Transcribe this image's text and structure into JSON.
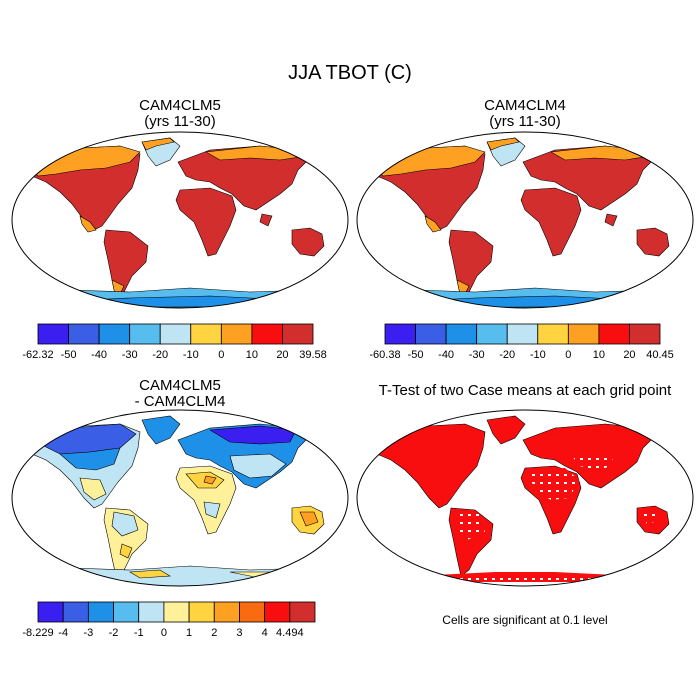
{
  "title": "JJA TBOT (C)",
  "panels": {
    "p1": {
      "line1": "CAM4CLM5",
      "line2": "(yrs 11-30)"
    },
    "p2": {
      "line1": "CAM4CLM4",
      "line2": "(yrs 11-30)"
    },
    "p3": {
      "line1": "CAM4CLM5",
      "line2": "- CAM4CLM4"
    },
    "p4": {
      "title": "T-Test of two Case means at each grid point",
      "note": "Cells are significant at 0.1 level"
    }
  },
  "colorbars": {
    "cb1": {
      "colors": [
        "#3a1ff0",
        "#3b5ee6",
        "#1e90e8",
        "#56bdee",
        "#bfe4f4",
        "#ffd440",
        "#fea123",
        "#f90e10",
        "#d22e2e"
      ],
      "labels": [
        "-62.32",
        "-50",
        "-40",
        "-30",
        "-20",
        "-10",
        "0",
        "10",
        "20",
        "39.58"
      ]
    },
    "cb2": {
      "colors": [
        "#3a1ff0",
        "#3b5ee6",
        "#1e90e8",
        "#56bdee",
        "#bfe4f4",
        "#ffd440",
        "#fea123",
        "#f90e10",
        "#d22e2e"
      ],
      "labels": [
        "-60.38",
        "-50",
        "-40",
        "-30",
        "-20",
        "-10",
        "0",
        "10",
        "20",
        "40.45"
      ]
    },
    "cb3": {
      "colors": [
        "#3a1ff0",
        "#3b5ee6",
        "#1e90e8",
        "#56bdee",
        "#bfe4f4",
        "#fff19a",
        "#ffd440",
        "#fea123",
        "#f96b10",
        "#f90e10",
        "#d22e2e"
      ],
      "labels": [
        "-8.229",
        "-4",
        "-3",
        "-2",
        "-1",
        "0",
        "1",
        "2",
        "3",
        "4",
        "4.494"
      ]
    }
  },
  "map_colors": {
    "hot": "#d22e2e",
    "warm": "#f90e10",
    "orange": "#fea123",
    "yellow": "#ffd440",
    "lightblue": "#bfe4f4",
    "cyan": "#56bdee",
    "blue": "#1e90e8",
    "deepblue": "#3b5ee6",
    "violet": "#3a1ff0",
    "pale": "#fff19a",
    "ttest": "#f90e10"
  }
}
